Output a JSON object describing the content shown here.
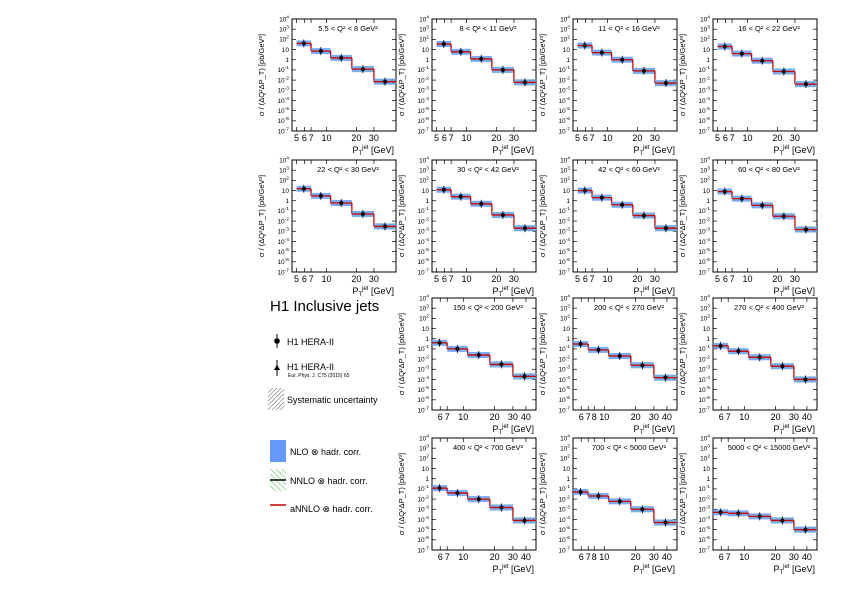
{
  "y_axis_label": "σ / (ΔQ²ΔP_T) [pb/GeV³]",
  "x_axis_label": "P_T^jet [GeV]",
  "legend": {
    "title": "H1 Inclusive jets",
    "items": [
      {
        "label": "H1 HERA-II",
        "icon": "data-point-circle-icon"
      },
      {
        "label": "H1 HERA-II",
        "sub": "Eur. Phys. J. C75 (2015) 65",
        "icon": "data-point-triangle-icon"
      },
      {
        "label": "Systematic uncertainty",
        "icon": "hatched-box-icon"
      },
      {
        "label": "NLO ⊗ hadr. corr.",
        "icon": "blue-box-icon"
      },
      {
        "label": "NNLO ⊗ hadr. corr.",
        "icon": "green-hatched-line-icon"
      },
      {
        "label": "aNNLO ⊗ hadr. corr.",
        "icon": "red-line-icon"
      }
    ]
  },
  "colors": {
    "nlo": "#6699ff",
    "nnlo": "#009900",
    "annlo": "#cc0000",
    "data": "#000000",
    "syst": "#555555"
  },
  "chart_data": [
    {
      "type": "histogram",
      "log_x": true,
      "log_y": true,
      "title": "5.5 < Q² < 8 GeV²",
      "xlim": [
        4.5,
        50
      ],
      "ylim_exp": [
        -7,
        4
      ],
      "xticks": [
        5,
        6,
        7,
        10,
        20,
        30
      ],
      "bins": [
        5,
        7,
        11,
        18,
        30,
        50
      ],
      "values": [
        40,
        7,
        1.5,
        0.12,
        0.007
      ]
    },
    {
      "type": "histogram",
      "log_x": true,
      "log_y": true,
      "title": "8 < Q² < 11 GeV²",
      "xlim": [
        4.5,
        50
      ],
      "ylim_exp": [
        -7,
        4
      ],
      "xticks": [
        5,
        6,
        7,
        10,
        20,
        30
      ],
      "bins": [
        5,
        7,
        11,
        18,
        30,
        50
      ],
      "values": [
        35,
        6,
        1.2,
        0.1,
        0.006
      ]
    },
    {
      "type": "histogram",
      "log_x": true,
      "log_y": true,
      "title": "11 < Q² < 16 GeV²",
      "xlim": [
        4.5,
        50
      ],
      "ylim_exp": [
        -7,
        4
      ],
      "xticks": [
        5,
        6,
        7,
        10,
        20,
        30
      ],
      "bins": [
        5,
        7,
        11,
        18,
        30,
        50
      ],
      "values": [
        25,
        5,
        1,
        0.08,
        0.005
      ]
    },
    {
      "type": "histogram",
      "log_x": true,
      "log_y": true,
      "title": "16 < Q² < 22 GeV²",
      "xlim": [
        4.5,
        50
      ],
      "ylim_exp": [
        -7,
        4
      ],
      "xticks": [
        5,
        6,
        7,
        10,
        20,
        30
      ],
      "bins": [
        5,
        7,
        11,
        18,
        30,
        50
      ],
      "values": [
        20,
        4,
        0.8,
        0.07,
        0.004
      ]
    },
    {
      "type": "histogram",
      "log_x": true,
      "log_y": true,
      "title": "22 < Q² < 30 GeV²",
      "xlim": [
        4.5,
        50
      ],
      "ylim_exp": [
        -7,
        4
      ],
      "xticks": [
        5,
        6,
        7,
        10,
        20,
        30
      ],
      "bins": [
        5,
        7,
        11,
        18,
        30,
        50
      ],
      "values": [
        15,
        3,
        0.6,
        0.05,
        0.003
      ]
    },
    {
      "type": "histogram",
      "log_x": true,
      "log_y": true,
      "title": "30 < Q² < 42 GeV²",
      "xlim": [
        4.5,
        50
      ],
      "ylim_exp": [
        -7,
        4
      ],
      "xticks": [
        5,
        6,
        7,
        10,
        20,
        30
      ],
      "bins": [
        5,
        7,
        11,
        18,
        30,
        50
      ],
      "values": [
        12,
        2.5,
        0.5,
        0.04,
        0.002
      ]
    },
    {
      "type": "histogram",
      "log_x": true,
      "log_y": true,
      "title": "42 < Q² < 60 GeV²",
      "xlim": [
        4.5,
        50
      ],
      "ylim_exp": [
        -7,
        4
      ],
      "xticks": [
        5,
        6,
        7,
        10,
        20,
        30
      ],
      "bins": [
        5,
        7,
        11,
        18,
        30,
        50
      ],
      "values": [
        10,
        2,
        0.4,
        0.035,
        0.002
      ]
    },
    {
      "type": "histogram",
      "log_x": true,
      "log_y": true,
      "title": "60 < Q² < 80 GeV²",
      "xlim": [
        4.5,
        50
      ],
      "ylim_exp": [
        -7,
        4
      ],
      "xticks": [
        5,
        6,
        7,
        10,
        20,
        30
      ],
      "bins": [
        5,
        7,
        11,
        18,
        30,
        50
      ],
      "values": [
        8,
        1.6,
        0.35,
        0.03,
        0.0015
      ]
    },
    {
      "type": "histogram",
      "log_x": true,
      "log_y": true,
      "title": "150 < Q² < 200 GeV²",
      "xlim": [
        5,
        50
      ],
      "ylim_exp": [
        -7,
        4
      ],
      "xticks": [
        6,
        7,
        10,
        20,
        30,
        40
      ],
      "bins": [
        5,
        7,
        11,
        18,
        30,
        50
      ],
      "values": [
        0.4,
        0.1,
        0.025,
        0.003,
        0.0002
      ]
    },
    {
      "type": "histogram",
      "log_x": true,
      "log_y": true,
      "title": "200 < Q² < 270 GeV²",
      "xlim": [
        5,
        50
      ],
      "ylim_exp": [
        -7,
        4
      ],
      "xticks": [
        6,
        7,
        8,
        10,
        20,
        30,
        40
      ],
      "bins": [
        5,
        7,
        11,
        18,
        30,
        50
      ],
      "values": [
        0.3,
        0.08,
        0.02,
        0.0025,
        0.00015
      ]
    },
    {
      "type": "histogram",
      "log_x": true,
      "log_y": true,
      "title": "270 < Q² < 400 GeV²",
      "xlim": [
        5,
        50
      ],
      "ylim_exp": [
        -7,
        4
      ],
      "xticks": [
        6,
        7,
        10,
        20,
        30,
        40
      ],
      "bins": [
        5,
        7,
        11,
        18,
        30,
        50
      ],
      "values": [
        0.2,
        0.06,
        0.015,
        0.002,
        0.0001
      ]
    },
    {
      "type": "histogram",
      "log_x": true,
      "log_y": true,
      "title": "400 < Q² < 700 GeV²",
      "xlim": [
        5,
        50
      ],
      "ylim_exp": [
        -7,
        4
      ],
      "xticks": [
        6,
        7,
        10,
        20,
        30,
        40
      ],
      "bins": [
        5,
        7,
        11,
        18,
        30,
        50
      ],
      "values": [
        0.12,
        0.04,
        0.01,
        0.0015,
        8e-05
      ]
    },
    {
      "type": "histogram",
      "log_x": true,
      "log_y": true,
      "title": "700 < Q² < 5000 GeV²",
      "xlim": [
        5,
        50
      ],
      "ylim_exp": [
        -7,
        4
      ],
      "xticks": [
        6,
        7,
        8,
        10,
        20,
        30,
        40
      ],
      "bins": [
        5,
        7,
        11,
        18,
        30,
        50
      ],
      "values": [
        0.05,
        0.02,
        0.006,
        0.001,
        5e-05
      ]
    },
    {
      "type": "histogram",
      "log_x": true,
      "log_y": true,
      "title": "5000 < Q² < 15000 GeV²",
      "xlim": [
        5,
        50
      ],
      "ylim_exp": [
        -7,
        4
      ],
      "xticks": [
        6,
        7,
        10,
        20,
        30,
        40
      ],
      "bins": [
        5,
        7,
        11,
        18,
        30,
        50
      ],
      "values": [
        0.0005,
        0.0004,
        0.0002,
        8e-05,
        1e-05
      ]
    }
  ]
}
